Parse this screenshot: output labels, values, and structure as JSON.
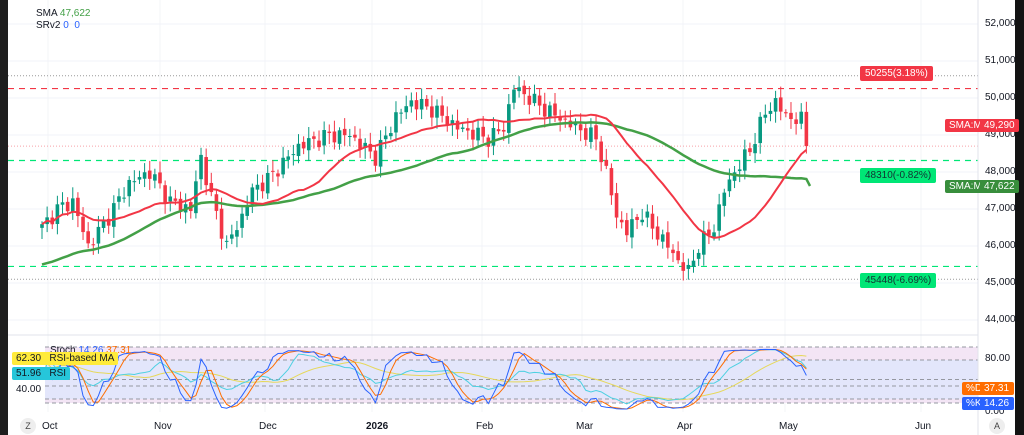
{
  "legend": {
    "sma_label": "SMA",
    "sma_value": "47,622",
    "srv2_label": "SRv2",
    "srv2_values": "0  0"
  },
  "levels": [
    {
      "price": 50255,
      "text": "50255(3.18%)",
      "color": "#f23645"
    },
    {
      "price": 48310,
      "text": "48310(-0.82%)",
      "color": "#00e676"
    },
    {
      "price": 45448,
      "text": "45448(-6.69%)",
      "color": "#00e676"
    }
  ],
  "price_tags": [
    {
      "name": "SMA:MA",
      "value": "49,290",
      "color": "#f23645"
    },
    {
      "name": "SMA:MA",
      "value": "47,622",
      "color": "#388e3c"
    }
  ],
  "lower": {
    "stoch_label": "Stoch",
    "k_value": "14.26",
    "d_value": "37.31",
    "rsi_ma_value": "62.30",
    "rsi_ma_label": "RSI-based MA",
    "rsi_value": "51.96",
    "rsi_label": "RSI",
    "left_tick": "40.00",
    "ticks": [
      "80.00",
      "0.00"
    ],
    "tag_d": "%D",
    "tag_k": "%K"
  },
  "buttons": {
    "zoom": "Z",
    "auto": "A"
  },
  "chart_data": {
    "type": "candlestick",
    "price_axis": {
      "ticks": [
        "52,000",
        "51,000",
        "50,000",
        "49,000",
        "48,000",
        "47,000",
        "46,000",
        "45,000",
        "44,000"
      ],
      "range": [
        44000,
        52000
      ]
    },
    "time_axis": [
      "Oct",
      "Nov",
      "Dec",
      "2026",
      "Feb",
      "Mar",
      "Apr",
      "May",
      "Jun"
    ],
    "candle_count": 150,
    "key_closes": [
      [
        0,
        46500
      ],
      [
        3,
        47000
      ],
      [
        6,
        47200
      ],
      [
        9,
        46000
      ],
      [
        13,
        46800
      ],
      [
        17,
        47700
      ],
      [
        21,
        48000
      ],
      [
        25,
        47200
      ],
      [
        29,
        47000
      ],
      [
        31,
        48400
      ],
      [
        33,
        47300
      ],
      [
        36,
        46000
      ],
      [
        39,
        46800
      ],
      [
        41,
        47500
      ],
      [
        44,
        47800
      ],
      [
        50,
        48700
      ],
      [
        56,
        49000
      ],
      [
        60,
        49000
      ],
      [
        65,
        48400
      ],
      [
        69,
        49500
      ],
      [
        72,
        49900
      ],
      [
        76,
        49700
      ],
      [
        81,
        49200
      ],
      [
        87,
        48900
      ],
      [
        90,
        49200
      ],
      [
        92,
        50300
      ],
      [
        95,
        50000
      ],
      [
        98,
        49700
      ],
      [
        103,
        49300
      ],
      [
        108,
        48900
      ],
      [
        110,
        48000
      ],
      [
        112,
        46800
      ],
      [
        114,
        46400
      ],
      [
        117,
        46900
      ],
      [
        119,
        46500
      ],
      [
        122,
        46000
      ],
      [
        124,
        45600
      ],
      [
        126,
        45300
      ],
      [
        128,
        46000
      ],
      [
        131,
        46500
      ],
      [
        133,
        47500
      ],
      [
        135,
        48000
      ],
      [
        138,
        48600
      ],
      [
        141,
        49600
      ],
      [
        143,
        49900
      ],
      [
        145,
        49500
      ],
      [
        148,
        49400
      ],
      [
        149,
        48700
      ]
    ],
    "sma_fast_period": 20,
    "sma_slow_period": 50,
    "colors": {
      "up": "#089981",
      "down": "#f23645",
      "sma_fast": "#f23645",
      "sma_slow": "#43a047"
    }
  }
}
